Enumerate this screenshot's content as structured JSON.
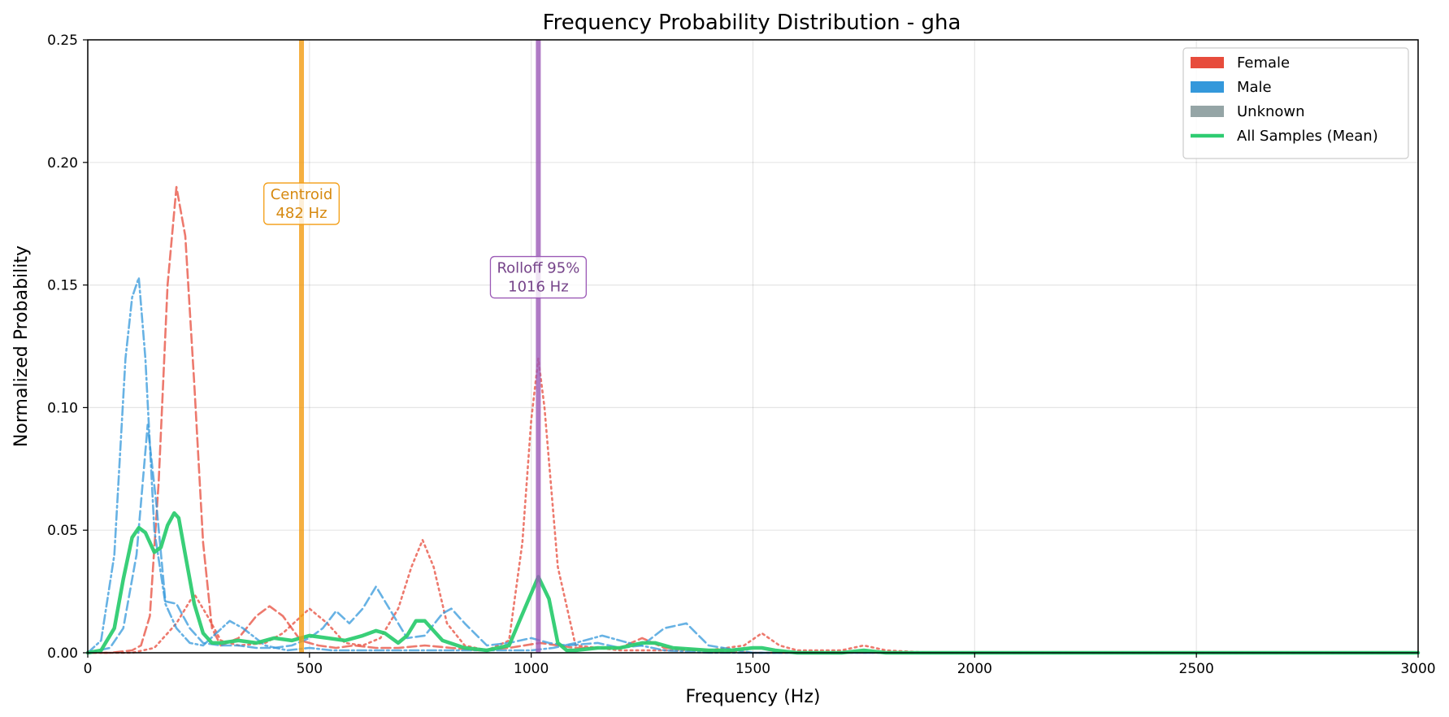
{
  "chart_data": {
    "type": "line",
    "title": "Frequency Probability Distribution - gha",
    "xlabel": "Frequency (Hz)",
    "ylabel": "Normalized Probability",
    "xlim": [
      0,
      3000
    ],
    "ylim": [
      0,
      0.25
    ],
    "x_ticks": [
      0,
      500,
      1000,
      1500,
      2000,
      2500,
      3000
    ],
    "y_ticks": [
      "0.00",
      "0.05",
      "0.10",
      "0.15",
      "0.20",
      "0.25"
    ],
    "grid": true,
    "legend_position": "top-right",
    "legend": [
      {
        "label": "Female",
        "kind": "patch",
        "color": "#e74c3c"
      },
      {
        "label": "Male",
        "kind": "patch",
        "color": "#3498db"
      },
      {
        "label": "Unknown",
        "kind": "patch",
        "color": "#95a5a6"
      },
      {
        "label": "All Samples (Mean)",
        "kind": "line",
        "color": "#2ecc71"
      }
    ],
    "markers": [
      {
        "label_line1": "Centroid",
        "label_line2": "482 Hz",
        "x": 482,
        "label_y": 0.183,
        "color": "#f39c12",
        "text_color": "#d68910"
      },
      {
        "label_line1": "Rolloff 95%",
        "label_line2": "1016 Hz",
        "x": 1016,
        "label_y": 0.153,
        "color": "#9b59b6",
        "text_color": "#76448a"
      }
    ],
    "series": [
      {
        "group": "Female",
        "color": "#e74c3c",
        "dash": "dashed",
        "x": [
          0,
          50,
          100,
          120,
          140,
          160,
          180,
          200,
          220,
          240,
          260,
          280,
          300,
          340,
          380,
          410,
          440,
          480,
          520,
          560,
          600,
          650,
          700,
          760,
          820,
          880,
          950,
          1020,
          1100,
          1200,
          1250,
          1300,
          1400,
          1500,
          3000
        ],
        "y": [
          0,
          0,
          0.001,
          0.003,
          0.015,
          0.07,
          0.15,
          0.19,
          0.17,
          0.11,
          0.045,
          0.01,
          0.003,
          0.006,
          0.015,
          0.019,
          0.015,
          0.005,
          0.003,
          0.002,
          0.003,
          0.002,
          0.002,
          0.003,
          0.002,
          0.001,
          0.002,
          0.004,
          0.002,
          0.002,
          0.006,
          0.002,
          0.001,
          0,
          0
        ]
      },
      {
        "group": "Female",
        "color": "#e74c3c",
        "dash": "dotted",
        "x": [
          0,
          100,
          150,
          200,
          240,
          270,
          300,
          340,
          400,
          440,
          500,
          540,
          580,
          620,
          660,
          700,
          730,
          755,
          780,
          810,
          850,
          900,
          950,
          980,
          1000,
          1016,
          1030,
          1060,
          1100,
          1200,
          1300,
          1400,
          1480,
          1520,
          1560,
          1600,
          1700,
          1750,
          1800,
          1900,
          3000
        ],
        "y": [
          0,
          0,
          0.002,
          0.012,
          0.024,
          0.015,
          0.005,
          0.003,
          0.004,
          0.008,
          0.018,
          0.012,
          0.004,
          0.003,
          0.006,
          0.018,
          0.035,
          0.046,
          0.035,
          0.012,
          0.003,
          0.001,
          0.005,
          0.045,
          0.095,
          0.12,
          0.1,
          0.035,
          0.003,
          0.001,
          0.001,
          0.001,
          0.003,
          0.008,
          0.003,
          0.001,
          0.001,
          0.003,
          0.001,
          0,
          0
        ]
      },
      {
        "group": "Male",
        "color": "#3498db",
        "dash": "dashed",
        "x": [
          0,
          50,
          80,
          110,
          135,
          155,
          175,
          200,
          230,
          260,
          300,
          340,
          380,
          420,
          460,
          500,
          530,
          560,
          590,
          620,
          650,
          680,
          720,
          760,
          800,
          820,
          850,
          900,
          950,
          1000,
          1040,
          1080,
          1150,
          1200,
          1250,
          1300,
          1350,
          1400,
          1500,
          3000
        ],
        "y": [
          0,
          0.002,
          0.01,
          0.04,
          0.093,
          0.06,
          0.021,
          0.02,
          0.01,
          0.004,
          0.003,
          0.003,
          0.002,
          0.002,
          0.003,
          0.006,
          0.01,
          0.017,
          0.012,
          0.018,
          0.027,
          0.018,
          0.006,
          0.007,
          0.016,
          0.018,
          0.012,
          0.003,
          0.004,
          0.006,
          0.004,
          0.003,
          0.004,
          0.002,
          0.003,
          0.01,
          0.012,
          0.003,
          0,
          0
        ]
      },
      {
        "group": "Male",
        "color": "#3498db",
        "dash": "dashdot",
        "x": [
          0,
          30,
          60,
          85,
          100,
          115,
          130,
          150,
          175,
          200,
          230,
          260,
          290,
          320,
          350,
          400,
          450,
          500,
          550,
          600,
          650,
          700,
          800,
          900,
          1000,
          1050,
          1100,
          1160,
          1220,
          1300,
          1400,
          3000
        ],
        "y": [
          0,
          0.005,
          0.04,
          0.12,
          0.145,
          0.153,
          0.12,
          0.05,
          0.02,
          0.01,
          0.004,
          0.003,
          0.008,
          0.013,
          0.01,
          0.003,
          0.001,
          0.002,
          0.001,
          0.001,
          0.001,
          0.001,
          0.001,
          0.001,
          0.001,
          0.002,
          0.004,
          0.007,
          0.004,
          0.001,
          0,
          0
        ]
      },
      {
        "group": "All Samples (Mean)",
        "color": "#2ecc71",
        "dash": "solid",
        "mean": true,
        "x": [
          0,
          30,
          60,
          80,
          100,
          115,
          130,
          150,
          165,
          180,
          195,
          205,
          220,
          240,
          260,
          280,
          300,
          340,
          380,
          420,
          460,
          500,
          540,
          580,
          620,
          650,
          670,
          700,
          720,
          740,
          760,
          780,
          800,
          850,
          900,
          950,
          990,
          1016,
          1040,
          1060,
          1080,
          1100,
          1150,
          1200,
          1250,
          1280,
          1320,
          1400,
          1450,
          1500,
          1520,
          1550,
          1600,
          1700,
          1750,
          1800,
          3000
        ],
        "y": [
          0,
          0.001,
          0.01,
          0.03,
          0.047,
          0.051,
          0.049,
          0.041,
          0.043,
          0.052,
          0.057,
          0.055,
          0.04,
          0.02,
          0.008,
          0.004,
          0.004,
          0.005,
          0.004,
          0.006,
          0.005,
          0.007,
          0.006,
          0.005,
          0.007,
          0.009,
          0.008,
          0.004,
          0.007,
          0.013,
          0.013,
          0.009,
          0.005,
          0.002,
          0.001,
          0.003,
          0.02,
          0.031,
          0.022,
          0.004,
          0.001,
          0.001,
          0.002,
          0.002,
          0.004,
          0.004,
          0.002,
          0.001,
          0.001,
          0.002,
          0.002,
          0.001,
          0,
          0,
          0.001,
          0,
          0
        ]
      }
    ]
  }
}
